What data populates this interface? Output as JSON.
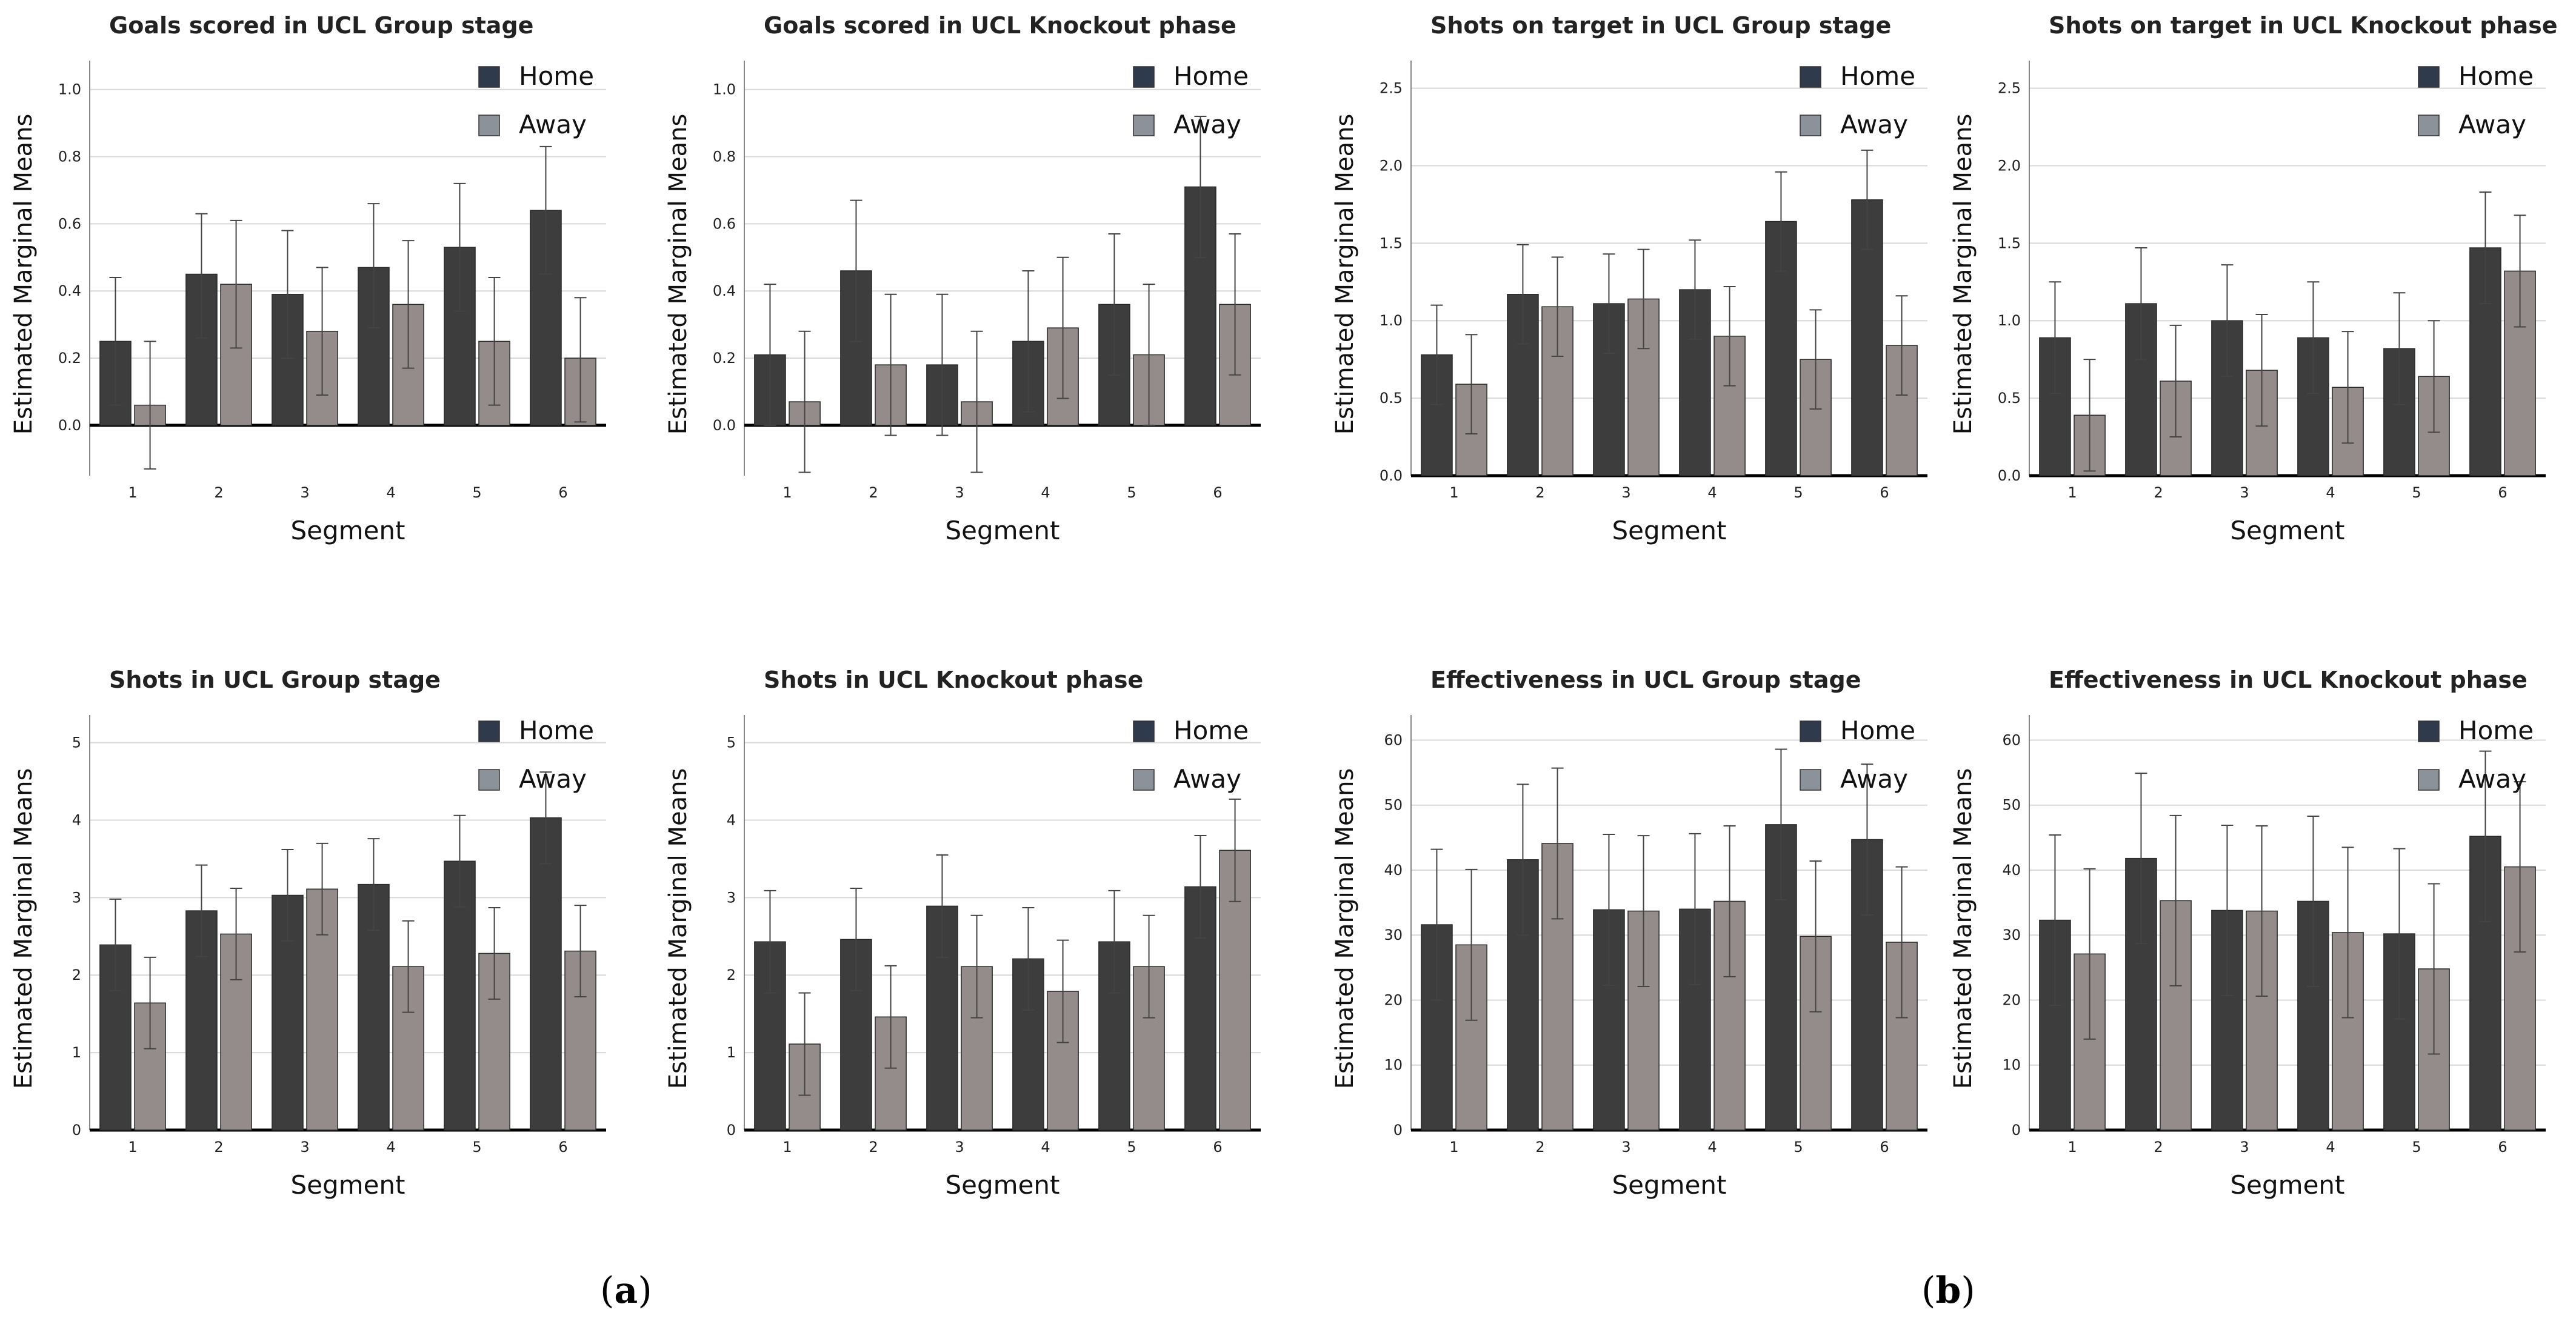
{
  "figure": {
    "panel_labels": [
      {
        "open": "(",
        "letter": "a",
        "close": ")"
      },
      {
        "open": "(",
        "letter": "b",
        "close": ")"
      }
    ]
  },
  "legend": {
    "home": "Home",
    "away": "Away"
  },
  "colors": {
    "home": "#3d3d3d",
    "away": "#948c8b",
    "home_legend": "#2f3b4c",
    "away_legend": "#8c9299",
    "grid": "#d8d8d8",
    "axis": "#000000",
    "error_bar": "#444444"
  },
  "chart_data": [
    {
      "type": "bar",
      "title": "Goals scored in UCL Group stage",
      "xlabel": "Segment",
      "ylabel": "Estimated Marginal Means",
      "categories": [
        "1",
        "2",
        "3",
        "4",
        "5",
        "6"
      ],
      "ylim": [
        -0.15,
        1.05
      ],
      "yticks": [
        "0.0",
        "0.2",
        "0.4",
        "0.6",
        "0.8",
        "1.0"
      ],
      "ytick_values": [
        0,
        0.2,
        0.4,
        0.6,
        0.8,
        1.0
      ],
      "grid": true,
      "legend": "top-right",
      "series": [
        {
          "name": "Home",
          "values": [
            0.25,
            0.45,
            0.39,
            0.47,
            0.53,
            0.64
          ],
          "err_low": [
            0.06,
            0.26,
            0.2,
            0.29,
            0.34,
            0.45
          ],
          "err_high": [
            0.44,
            0.63,
            0.58,
            0.66,
            0.72,
            0.83
          ]
        },
        {
          "name": "Away",
          "values": [
            0.06,
            0.42,
            0.28,
            0.36,
            0.25,
            0.2
          ],
          "err_low": [
            -0.13,
            0.23,
            0.09,
            0.17,
            0.06,
            0.01
          ],
          "err_high": [
            0.25,
            0.61,
            0.47,
            0.55,
            0.44,
            0.38
          ]
        }
      ]
    },
    {
      "type": "bar",
      "title": "Goals scored in UCL Knockout phase",
      "xlabel": "Segment",
      "ylabel": "Estimated Marginal Means",
      "categories": [
        "1",
        "2",
        "3",
        "4",
        "5",
        "6"
      ],
      "ylim": [
        -0.15,
        1.05
      ],
      "yticks": [
        "0.0",
        "0.2",
        "0.4",
        "0.6",
        "0.8",
        "1.0"
      ],
      "ytick_values": [
        0,
        0.2,
        0.4,
        0.6,
        0.8,
        1.0
      ],
      "grid": true,
      "legend": "top-right",
      "series": [
        {
          "name": "Home",
          "values": [
            0.21,
            0.46,
            0.18,
            0.25,
            0.36,
            0.71
          ],
          "err_low": [
            0.0,
            0.25,
            -0.03,
            0.04,
            0.15,
            0.5
          ],
          "err_high": [
            0.42,
            0.67,
            0.39,
            0.46,
            0.57,
            0.92
          ]
        },
        {
          "name": "Away",
          "values": [
            0.07,
            0.18,
            0.07,
            0.29,
            0.21,
            0.36
          ],
          "err_low": [
            -0.14,
            -0.03,
            -0.14,
            0.08,
            0.0,
            0.15
          ],
          "err_high": [
            0.28,
            0.39,
            0.28,
            0.5,
            0.42,
            0.57
          ]
        }
      ]
    },
    {
      "type": "bar",
      "title": "Shots on target in UCL Group stage",
      "xlabel": "Segment",
      "ylabel": "Estimated Marginal Means",
      "categories": [
        "1",
        "2",
        "3",
        "4",
        "5",
        "6"
      ],
      "ylim": [
        0,
        2.6
      ],
      "yticks": [
        "0.0",
        "0.5",
        "1.0",
        "1.5",
        "2.0",
        "2.5"
      ],
      "ytick_values": [
        0,
        0.5,
        1.0,
        1.5,
        2.0,
        2.5
      ],
      "grid": true,
      "legend": "top-right",
      "series": [
        {
          "name": "Home",
          "values": [
            0.78,
            1.17,
            1.11,
            1.2,
            1.64,
            1.78
          ],
          "err_low": [
            0.46,
            0.85,
            0.79,
            0.88,
            1.32,
            1.46
          ],
          "err_high": [
            1.1,
            1.49,
            1.43,
            1.52,
            1.96,
            2.1
          ]
        },
        {
          "name": "Away",
          "values": [
            0.59,
            1.09,
            1.14,
            0.9,
            0.75,
            0.84
          ],
          "err_low": [
            0.27,
            0.77,
            0.82,
            0.58,
            0.43,
            0.52
          ],
          "err_high": [
            0.91,
            1.41,
            1.46,
            1.22,
            1.07,
            1.16
          ]
        }
      ]
    },
    {
      "type": "bar",
      "title": "Shots on target in UCL Knockout phase",
      "xlabel": "Segment",
      "ylabel": "Estimated Marginal Means",
      "categories": [
        "1",
        "2",
        "3",
        "4",
        "5",
        "6"
      ],
      "ylim": [
        0,
        2.6
      ],
      "yticks": [
        "0.0",
        "0.5",
        "1.0",
        "1.5",
        "2.0",
        "2.5"
      ],
      "ytick_values": [
        0,
        0.5,
        1.0,
        1.5,
        2.0,
        2.5
      ],
      "grid": true,
      "legend": "top-right",
      "series": [
        {
          "name": "Home",
          "values": [
            0.89,
            1.11,
            1.0,
            0.89,
            0.82,
            1.47
          ],
          "err_low": [
            0.53,
            0.75,
            0.64,
            0.53,
            0.46,
            1.11
          ],
          "err_high": [
            1.25,
            1.47,
            1.36,
            1.25,
            1.18,
            1.83
          ]
        },
        {
          "name": "Away",
          "values": [
            0.39,
            0.61,
            0.68,
            0.57,
            0.64,
            1.32
          ],
          "err_low": [
            0.03,
            0.25,
            0.32,
            0.21,
            0.28,
            0.96
          ],
          "err_high": [
            0.75,
            0.97,
            1.04,
            0.93,
            1.0,
            1.68
          ]
        }
      ]
    },
    {
      "type": "bar",
      "title": "Shots in UCL Group stage",
      "xlabel": "Segment",
      "ylabel": "Estimated Marginal Means",
      "categories": [
        "1",
        "2",
        "3",
        "4",
        "5",
        "6"
      ],
      "ylim": [
        0,
        5.2
      ],
      "yticks": [
        "0",
        "1",
        "2",
        "3",
        "4",
        "5"
      ],
      "ytick_values": [
        0,
        1,
        2,
        3,
        4,
        5
      ],
      "grid": true,
      "legend": "top-right",
      "series": [
        {
          "name": "Home",
          "values": [
            2.39,
            2.83,
            3.03,
            3.17,
            3.47,
            4.03
          ],
          "err_low": [
            1.8,
            2.24,
            2.44,
            2.58,
            2.88,
            3.44
          ],
          "err_high": [
            2.98,
            3.42,
            3.62,
            3.76,
            4.06,
            4.62
          ]
        },
        {
          "name": "Away",
          "values": [
            1.64,
            2.53,
            3.11,
            2.11,
            2.28,
            2.31
          ],
          "err_low": [
            1.05,
            1.94,
            2.52,
            1.52,
            1.69,
            1.72
          ],
          "err_high": [
            2.23,
            3.12,
            3.7,
            2.7,
            2.87,
            2.9
          ]
        }
      ]
    },
    {
      "type": "bar",
      "title": "Shots in UCL Knockout phase",
      "xlabel": "Segment",
      "ylabel": "Estimated Marginal Means",
      "categories": [
        "1",
        "2",
        "3",
        "4",
        "5",
        "6"
      ],
      "ylim": [
        0,
        5.2
      ],
      "yticks": [
        "0",
        "1",
        "2",
        "3",
        "4",
        "5"
      ],
      "ytick_values": [
        0,
        1,
        2,
        3,
        4,
        5
      ],
      "grid": true,
      "legend": "top-right",
      "series": [
        {
          "name": "Home",
          "values": [
            2.43,
            2.46,
            2.89,
            2.21,
            2.43,
            3.14
          ],
          "err_low": [
            1.77,
            1.8,
            2.23,
            1.55,
            1.77,
            2.48
          ],
          "err_high": [
            3.09,
            3.12,
            3.55,
            2.87,
            3.09,
            3.8
          ]
        },
        {
          "name": "Away",
          "values": [
            1.11,
            1.46,
            2.11,
            1.79,
            2.11,
            3.61
          ],
          "err_low": [
            0.45,
            0.8,
            1.45,
            1.13,
            1.45,
            2.95
          ],
          "err_high": [
            1.77,
            2.12,
            2.77,
            2.45,
            2.77,
            4.27
          ]
        }
      ]
    },
    {
      "type": "bar",
      "title": "Effectiveness in UCL Group stage",
      "xlabel": "Segment",
      "ylabel": "Estimated Marginal Means",
      "categories": [
        "1",
        "2",
        "3",
        "4",
        "5",
        "6"
      ],
      "ylim": [
        0,
        62
      ],
      "yticks": [
        "0",
        "10",
        "20",
        "30",
        "40",
        "50",
        "60"
      ],
      "ytick_values": [
        0,
        10,
        20,
        30,
        40,
        50,
        60
      ],
      "grid": true,
      "legend": "top-right",
      "series": [
        {
          "name": "Home",
          "values": [
            31.6,
            41.6,
            33.9,
            34.0,
            47.0,
            44.7
          ],
          "err_low": [
            20.0,
            30.0,
            22.3,
            22.4,
            35.4,
            33.1
          ],
          "err_high": [
            43.2,
            53.2,
            45.5,
            45.6,
            58.6,
            56.3
          ]
        },
        {
          "name": "Away",
          "values": [
            28.5,
            44.1,
            33.7,
            35.2,
            29.8,
            28.9
          ],
          "err_low": [
            16.9,
            32.5,
            22.1,
            23.6,
            18.2,
            17.3
          ],
          "err_high": [
            40.1,
            55.7,
            45.3,
            46.8,
            41.4,
            40.5
          ]
        }
      ]
    },
    {
      "type": "bar",
      "title": "Effectiveness in UCL Knockout phase",
      "xlabel": "Segment",
      "ylabel": "Estimated Marginal Means",
      "categories": [
        "1",
        "2",
        "3",
        "4",
        "5",
        "6"
      ],
      "ylim": [
        0,
        62
      ],
      "yticks": [
        "0",
        "10",
        "20",
        "30",
        "40",
        "50",
        "60"
      ],
      "ytick_values": [
        0,
        10,
        20,
        30,
        40,
        50,
        60
      ],
      "grid": true,
      "legend": "top-right",
      "series": [
        {
          "name": "Home",
          "values": [
            32.3,
            41.8,
            33.8,
            35.2,
            30.2,
            45.2
          ],
          "err_low": [
            19.2,
            28.7,
            20.7,
            22.1,
            17.1,
            32.1
          ],
          "err_high": [
            45.4,
            54.9,
            46.9,
            48.3,
            43.3,
            58.3
          ]
        },
        {
          "name": "Away",
          "values": [
            27.1,
            35.3,
            33.7,
            30.4,
            24.8,
            40.5
          ],
          "err_low": [
            14.0,
            22.2,
            20.6,
            17.3,
            11.7,
            27.4
          ],
          "err_high": [
            40.2,
            48.4,
            46.8,
            43.5,
            37.9,
            53.6
          ]
        }
      ]
    }
  ]
}
